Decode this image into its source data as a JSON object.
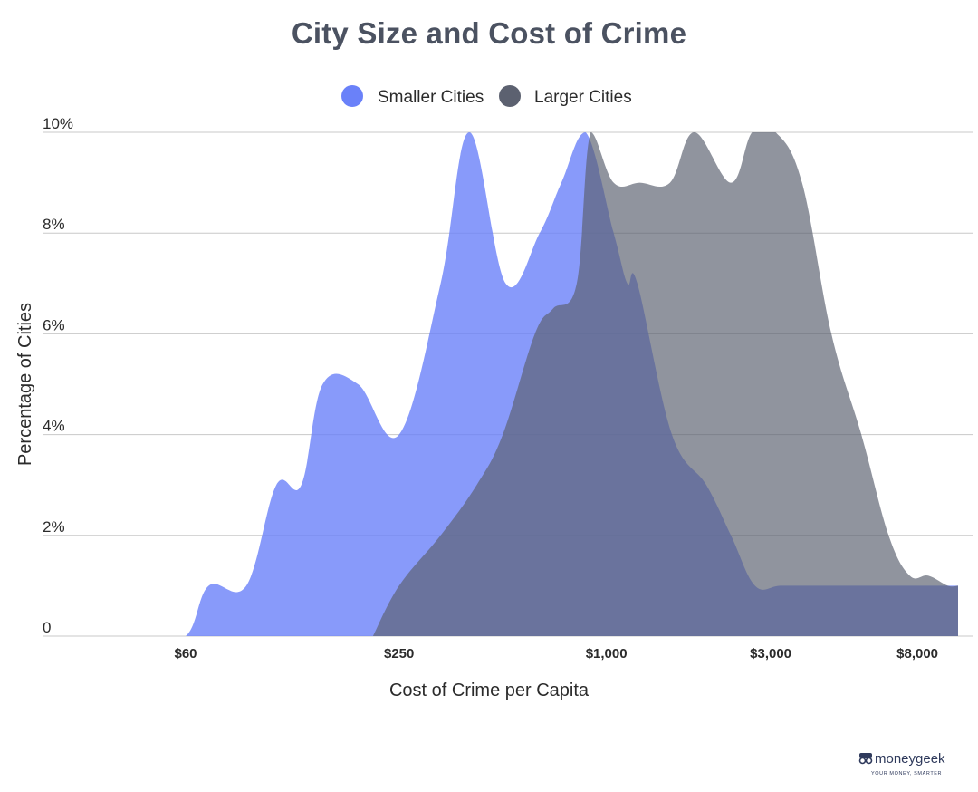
{
  "colors": {
    "smaller": "#6a81f9",
    "larger": "#5c6170",
    "grid": "#c8c8c8",
    "title": "#4b5261"
  },
  "brand": {
    "name": "moneygeek",
    "tagline": "YOUR MONEY, SMARTER"
  },
  "chart_data": {
    "type": "area",
    "title": "City Size and Cost of Crime",
    "xlabel": "Cost of Crime per Capita",
    "ylabel": "Percentage of Cities",
    "x_scale": "log",
    "x_tick_values": [
      60,
      250,
      1000,
      3000,
      8000
    ],
    "x_tick_labels": [
      "$60",
      "$250",
      "$1,000",
      "$3,000",
      "$8,000"
    ],
    "y_ticks": [
      0,
      2,
      4,
      6,
      8,
      10
    ],
    "y_tick_labels": [
      "0",
      "2%",
      "4%",
      "6%",
      "8%",
      "10%"
    ],
    "ylim": [
      0,
      10
    ],
    "legend_position": "top-center",
    "grid": true,
    "series": [
      {
        "name": "Smaller Cities",
        "color": "#6a81f9",
        "x": [
          45,
          60,
          70,
          90,
          110,
          130,
          150,
          190,
          250,
          330,
          400,
          510,
          640,
          740,
          870,
          1050,
          1150,
          1230,
          1550,
          1950,
          2300,
          2700,
          3200,
          4000,
          5000,
          6500,
          10500
        ],
        "y": [
          0,
          0,
          1,
          1,
          3,
          3,
          5,
          5,
          4,
          7,
          10,
          7,
          8,
          9,
          10,
          8,
          7,
          7,
          4,
          3,
          2,
          1,
          1,
          1,
          1,
          1,
          1
        ]
      },
      {
        "name": "Larger Cities",
        "color": "#5c6170",
        "x": [
          210,
          250,
          330,
          420,
          500,
          620,
          700,
          820,
          900,
          1050,
          1250,
          1530,
          1800,
          2300,
          2650,
          3100,
          3700,
          4500,
          5500,
          6600,
          7600,
          8600,
          9800,
          10500
        ],
        "y": [
          0,
          1,
          2,
          3,
          4,
          6,
          6.5,
          7,
          10,
          9,
          9,
          9,
          10,
          9,
          10,
          10,
          9,
          6,
          4,
          2,
          1.2,
          1.2,
          1,
          1
        ]
      }
    ]
  }
}
